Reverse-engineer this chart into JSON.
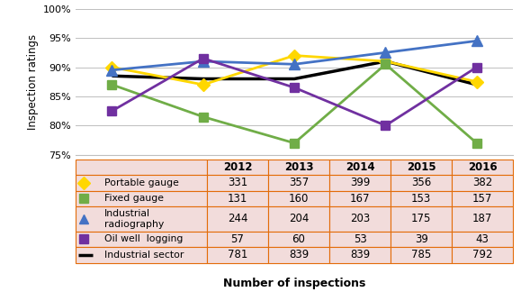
{
  "years": [
    2012,
    2013,
    2014,
    2015,
    2016
  ],
  "portable_gauge": [
    90.0,
    87.0,
    92.0,
    91.0,
    87.5
  ],
  "fixed_gauge": [
    87.0,
    81.5,
    77.0,
    90.5,
    77.0
  ],
  "industrial_radiography": [
    89.5,
    91.0,
    90.5,
    92.5,
    94.5
  ],
  "oil_well_logging": [
    82.5,
    91.5,
    86.5,
    80.0,
    90.0
  ],
  "industrial_sector": [
    88.5,
    88.0,
    88.0,
    91.0,
    87.0
  ],
  "table_rows": [
    [
      "Portable gauge",
      331,
      357,
      399,
      356,
      382
    ],
    [
      "Fixed gauge",
      131,
      160,
      167,
      153,
      157
    ],
    [
      "Industrial\nradiography",
      244,
      204,
      203,
      175,
      187
    ],
    [
      "Oil well  logging",
      57,
      60,
      53,
      39,
      43
    ],
    [
      "Industrial sector",
      781,
      839,
      839,
      785,
      792
    ]
  ],
  "colors": {
    "portable_gauge": "#FFD700",
    "fixed_gauge": "#70AD47",
    "industrial_radiography": "#4472C4",
    "oil_well_logging": "#7030A0",
    "industrial_sector": "#000000"
  },
  "markers": {
    "portable_gauge": "D",
    "fixed_gauge": "s",
    "industrial_radiography": "^",
    "oil_well_logging": "s",
    "industrial_sector": null
  },
  "table_bg": "#F2DCDB",
  "table_border": "#E36C09",
  "ylabel": "Inspection ratings",
  "xlabel": "Number of inspections",
  "ylim_min": 75,
  "ylim_max": 100,
  "yticks": [
    75,
    80,
    85,
    90,
    95,
    100
  ]
}
